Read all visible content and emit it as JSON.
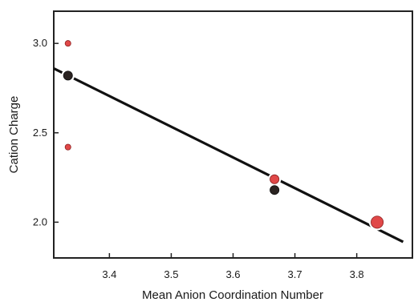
{
  "chart_data": {
    "type": "scatter",
    "title": "",
    "xlabel": "Mean Anion Coordination Number",
    "ylabel": "Cation Charge",
    "xlim": [
      3.31,
      3.89
    ],
    "ylim": [
      1.8,
      3.18
    ],
    "xticks": [
      3.4,
      3.5,
      3.6,
      3.7,
      3.8
    ],
    "xtick_labels": [
      "3.4",
      "3.5",
      "3.6",
      "3.7",
      "3.8"
    ],
    "yticks": [
      2.0,
      2.5,
      3.0
    ],
    "ytick_labels": [
      "2.0",
      "2.5",
      "3.0"
    ],
    "grid": false,
    "legend": false,
    "series": [
      {
        "color": "#e04848",
        "points": [
          {
            "x": 3.333,
            "y": 3.0,
            "size": "small"
          },
          {
            "x": 3.333,
            "y": 2.42,
            "size": "small"
          },
          {
            "x": 3.667,
            "y": 2.24,
            "size": "medium"
          },
          {
            "x": 3.833,
            "y": 2.0,
            "size": "large"
          }
        ]
      },
      {
        "color": "#2a2321",
        "points": [
          {
            "x": 3.333,
            "y": 2.82,
            "size": "medium"
          },
          {
            "x": 3.667,
            "y": 2.18,
            "size": "medium"
          }
        ]
      }
    ],
    "fit_line": {
      "x": [
        3.31,
        3.875
      ],
      "y": [
        2.86,
        1.89
      ],
      "color": "#111111",
      "breaks_at_points": true
    }
  }
}
